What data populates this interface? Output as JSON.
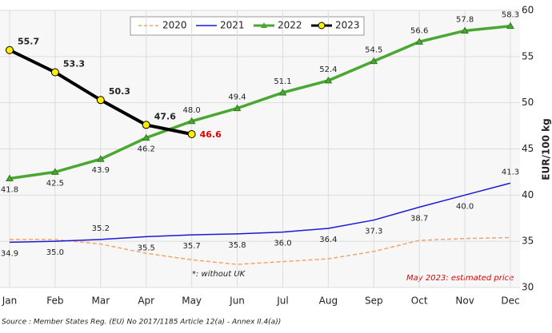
{
  "chart_data": {
    "type": "line",
    "categories": [
      "Jan",
      "Feb",
      "Mar",
      "Apr",
      "May",
      "Jun",
      "Jul",
      "Aug",
      "Sep",
      "Oct",
      "Nov",
      "Dec"
    ],
    "series": [
      {
        "name": "2020",
        "color": "#f4a46a",
        "dashed": true,
        "values": [
          35.2,
          35.2,
          34.7,
          33.7,
          33.0,
          32.5,
          32.8,
          33.1,
          33.9,
          35.1,
          35.3,
          35.4
        ]
      },
      {
        "name": "2021",
        "color": "#1a1ad6",
        "values": [
          34.9,
          35.0,
          35.2,
          35.5,
          35.7,
          35.8,
          36.0,
          36.4,
          37.3,
          38.7,
          40.0,
          41.3
        ],
        "value_labels": [
          "34.9",
          "35.0",
          "35.2",
          "35.5",
          "35.7",
          "35.8",
          "36.0",
          "36.4",
          "37.3",
          "38.7",
          "40.0",
          "41.3"
        ]
      },
      {
        "name": "2022",
        "color": "#4aa832",
        "marker": "triangle",
        "values": [
          41.8,
          42.5,
          43.9,
          46.2,
          48.0,
          49.4,
          51.1,
          52.4,
          54.5,
          56.6,
          57.8,
          58.3
        ],
        "value_labels": [
          "41.8",
          "42.5",
          "43.9",
          "46.2",
          "48.0",
          "49.4",
          "51.1",
          "52.4",
          "54.5",
          "56.6",
          "57.8",
          "58.3"
        ]
      },
      {
        "name": "2023",
        "color": "#000000",
        "marker": "circle",
        "marker_color": "#ffee00",
        "values": [
          55.7,
          53.3,
          50.3,
          47.6,
          46.6,
          null,
          null,
          null,
          null,
          null,
          null,
          null
        ],
        "value_labels": [
          "55.7",
          "53.3",
          "50.3",
          "47.6",
          "46.6",
          null,
          null,
          null,
          null,
          null,
          null,
          null
        ]
      }
    ],
    "y_label": "EUR/100 kg",
    "ylim": [
      30,
      60
    ],
    "yticks": [
      30,
      35,
      40,
      45,
      50,
      55,
      60
    ],
    "grid": true,
    "annotations": [
      "*: without UK",
      "May 2023: estimated price"
    ],
    "source": "Source : Member States Reg. (EU) No 2017/1185 Article 12(a) - Annex II.4(a))"
  }
}
